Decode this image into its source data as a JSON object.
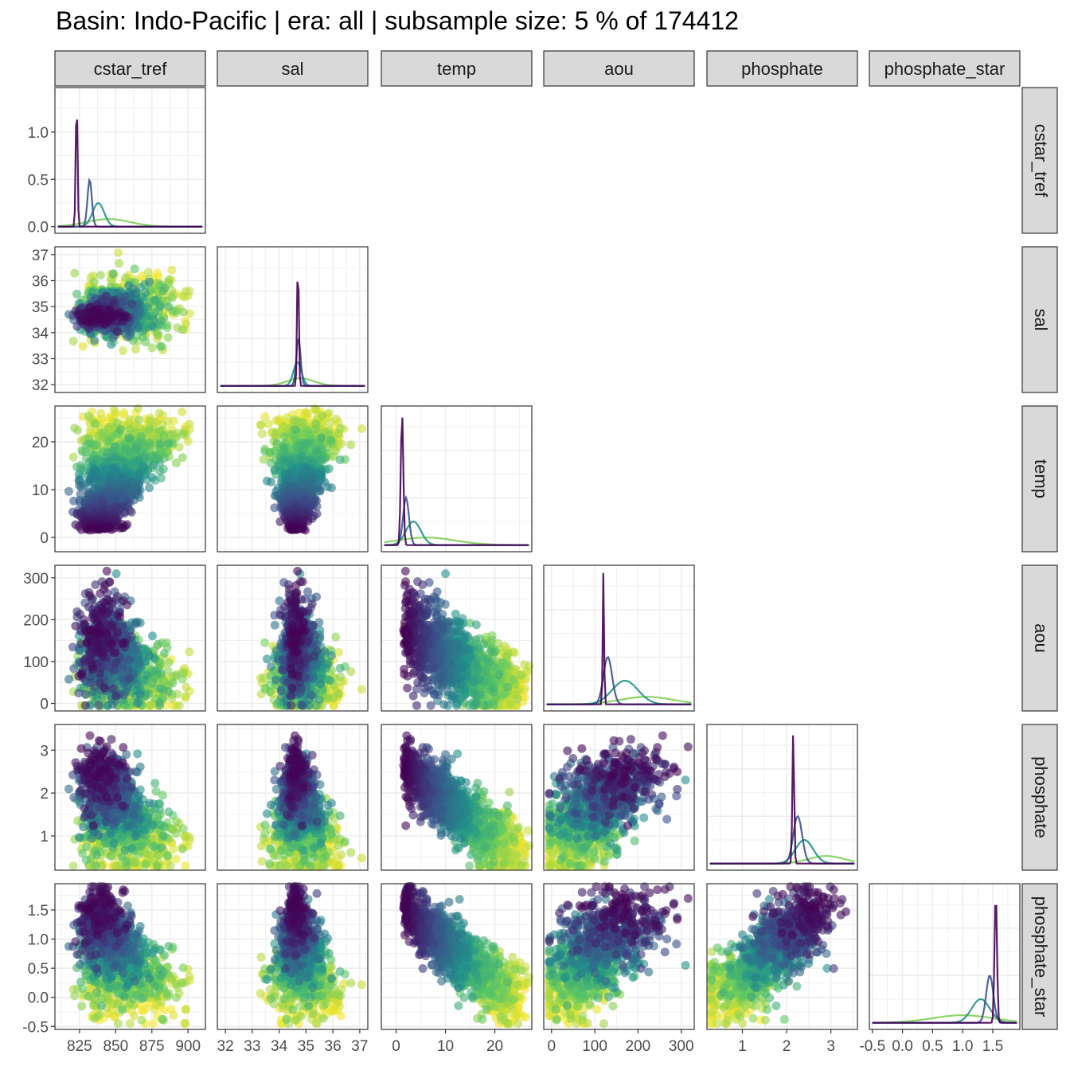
{
  "title": "Basin: Indo-Pacific | era: all | subsample size: 5 % of 174412",
  "chart_data": {
    "type": "scatter",
    "layout": "pairs-lower-triangle",
    "diagonal": "density",
    "variables": [
      "cstar_tref",
      "sal",
      "temp",
      "aou",
      "phosphate",
      "phosphate_star"
    ],
    "axes": {
      "cstar_tref": {
        "ticks": [
          825,
          850,
          875,
          900
        ],
        "tick_labels": [
          "825",
          "850",
          "875",
          "900"
        ],
        "range": [
          808,
          912
        ]
      },
      "sal": {
        "ticks": [
          32,
          33,
          34,
          35,
          36,
          37
        ],
        "tick_labels": [
          "32",
          "33",
          "34",
          "35",
          "36",
          "37"
        ],
        "range": [
          31.7,
          37.3
        ]
      },
      "temp": {
        "ticks": [
          0,
          10,
          20
        ],
        "tick_labels": [
          "0",
          "10",
          "20"
        ],
        "range": [
          -3,
          27.5
        ]
      },
      "aou": {
        "ticks": [
          0,
          100,
          200,
          300
        ],
        "tick_labels": [
          "0",
          "100",
          "200",
          "300"
        ],
        "range": [
          -18,
          330
        ]
      },
      "phosphate": {
        "ticks": [
          1,
          2,
          3
        ],
        "tick_labels": [
          "1",
          "2",
          "3"
        ],
        "range": [
          0.2,
          3.6
        ]
      },
      "phosphate_star": {
        "ticks": [
          -0.5,
          0.0,
          0.5,
          1.0,
          1.5
        ],
        "tick_labels": [
          "-0.5",
          "0.0",
          "0.5",
          "1.0",
          "1.5"
        ],
        "range": [
          -0.55,
          1.95
        ]
      }
    },
    "density_axis": {
      "ticks": [
        0.0,
        0.5,
        1.0
      ],
      "tick_labels": [
        "0.0",
        "0.5",
        "1.0"
      ],
      "range": [
        -0.07,
        1.47
      ]
    },
    "color_scale": "viridis",
    "palette": [
      "#440154",
      "#3b528b",
      "#21918c",
      "#5ec962",
      "#fde725"
    ],
    "grid": true,
    "legend": "none"
  }
}
